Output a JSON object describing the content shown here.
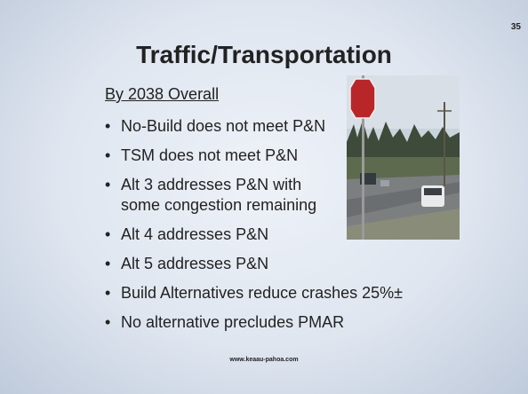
{
  "slide": {
    "number": "35",
    "title": "Traffic/Transportation",
    "subtitle": "By 2038 Overall",
    "bullets": [
      "No-Build does not meet P&N",
      "TSM does not meet P&N",
      "Alt 3 addresses P&N with some congestion remaining",
      "Alt 4 addresses P&N",
      "Alt 5 addresses P&N",
      "Build Alternatives reduce crashes 25%±",
      "No alternative precludes PMAR"
    ],
    "footer": "www.keaau-pahoa.com"
  }
}
